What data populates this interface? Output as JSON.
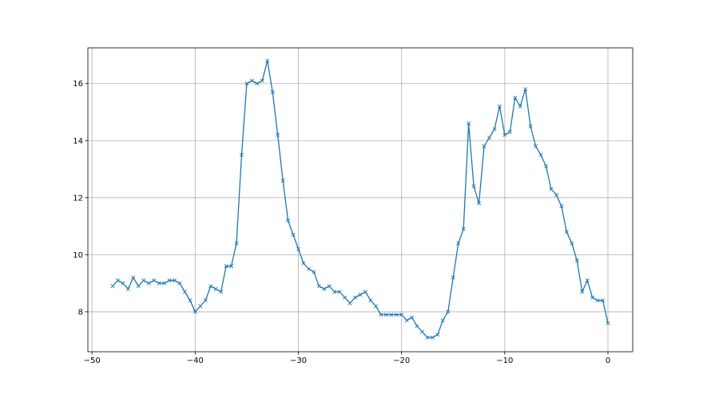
{
  "chart_data": {
    "type": "line",
    "title": "",
    "xlabel": "",
    "ylabel": "",
    "xlim": [
      -50.4,
      2.4
    ],
    "ylim": [
      6.6,
      17.25
    ],
    "xticks": [
      -50,
      -40,
      -30,
      -20,
      -10,
      0
    ],
    "yticks": [
      8,
      10,
      12,
      14,
      16
    ],
    "grid": true,
    "marker": "x",
    "color": "#1f77b4",
    "x_start": -48,
    "x_step": 0.5,
    "values": [
      8.9,
      9.1,
      9.0,
      8.8,
      9.2,
      8.9,
      9.1,
      9.0,
      9.1,
      9.0,
      9.0,
      9.1,
      9.1,
      9.0,
      8.7,
      8.4,
      8.0,
      8.2,
      8.4,
      8.9,
      8.8,
      8.7,
      9.6,
      9.6,
      10.4,
      13.5,
      16.0,
      16.1,
      16.0,
      16.1,
      16.8,
      15.7,
      14.2,
      12.6,
      11.2,
      10.7,
      10.2,
      9.7,
      9.5,
      9.4,
      8.9,
      8.8,
      8.9,
      8.7,
      8.7,
      8.5,
      8.3,
      8.5,
      8.6,
      8.7,
      8.4,
      8.2,
      7.9,
      7.9,
      7.9,
      7.9,
      7.9,
      7.7,
      7.8,
      7.5,
      7.3,
      7.1,
      7.1,
      7.2,
      7.7,
      8.0,
      9.2,
      10.4,
      10.9,
      14.6,
      12.4,
      11.8,
      13.8,
      14.1,
      14.4,
      15.2,
      14.2,
      14.3,
      15.5,
      15.2,
      15.8,
      14.5,
      13.8,
      13.5,
      13.1,
      12.3,
      12.1,
      11.7,
      10.8,
      10.4,
      9.8,
      8.7,
      9.1,
      8.5,
      8.4,
      8.4,
      7.6
    ]
  }
}
